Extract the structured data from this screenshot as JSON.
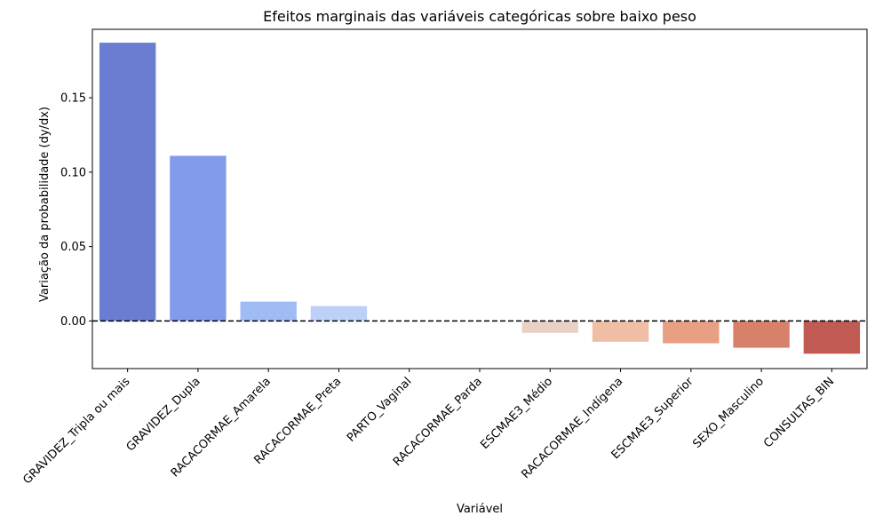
{
  "chart_data": {
    "type": "bar",
    "title": "Efeitos marginais das variáveis categóricas sobre baixo peso",
    "xlabel": "Variável",
    "ylabel": "Variação da probabilidade (dy/dx)",
    "ylim": [
      -0.032,
      0.196
    ],
    "yticks": [
      0.0,
      0.05,
      0.1,
      0.15
    ],
    "ytick_labels": [
      "0.00",
      "0.05",
      "0.10",
      "0.15"
    ],
    "reference_line": {
      "y": 0,
      "style": "dashed",
      "color": "#000000"
    },
    "grid": false,
    "categories": [
      "GRAVIDEZ_Tripla ou mais",
      "GRAVIDEZ_Dupla",
      "RACACORMAE_Amarela",
      "RACACORMAE_Preta",
      "PARTO_Vaginal",
      "RACACORMAE_Parda",
      "ESCMAE3_Médio",
      "RACACORMAE_Indígena",
      "ESCMAE3_Superior",
      "SEXO_Masculino",
      "CONSULTAS_BIN"
    ],
    "values": [
      0.187,
      0.111,
      0.013,
      0.01,
      0.0,
      0.0,
      -0.008,
      -0.014,
      -0.015,
      -0.018,
      -0.022
    ],
    "colors": [
      "#6a7dd0",
      "#829beb",
      "#a1bcf5",
      "#bdd0f8",
      "#d4dbe6",
      "#e1d9d3",
      "#e9d1c5",
      "#efbea5",
      "#e89f84",
      "#d7816a",
      "#c15a52"
    ]
  }
}
